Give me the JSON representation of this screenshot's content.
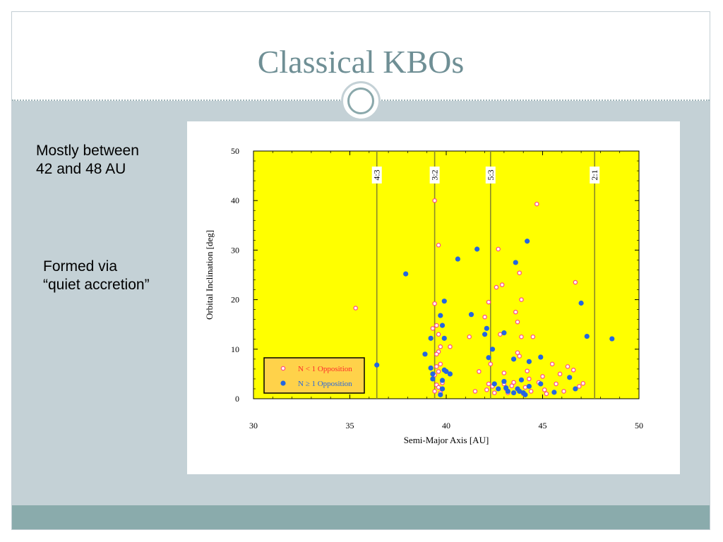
{
  "slide": {
    "title": "Classical KBOs",
    "bullets": [
      "Mostly between\n42 and 48 AU",
      "Formed via\n“quiet accretion”"
    ]
  },
  "colors": {
    "title": "#6f8f95",
    "background_panel": "#c4d1d6",
    "footer": "#8aabac",
    "plot_background": "#ffff00",
    "resonance_line": "#8a8a2a",
    "legend_fill": "#ffd24a",
    "open_marker": "#ff4d88",
    "filled_marker": "#2466e0"
  },
  "chart_data": {
    "type": "scatter",
    "xlabel": "Semi-Major Axis [AU]",
    "ylabel": "Orbital Inclination [deg]",
    "xlim": [
      30,
      50
    ],
    "ylim": [
      0,
      50
    ],
    "x_ticks": [
      30,
      35,
      40,
      45,
      50
    ],
    "y_ticks": [
      0,
      10,
      20,
      30,
      40,
      50
    ],
    "grid": false,
    "legend_position": "bottom-left",
    "resonances": [
      {
        "label": "4:3",
        "x": 36.4
      },
      {
        "label": "3:2",
        "x": 39.4
      },
      {
        "label": "5:3",
        "x": 42.3
      },
      {
        "label": "2:1",
        "x": 47.7
      }
    ],
    "series": [
      {
        "name": "N < 1 Opposition",
        "marker": "open",
        "points": [
          [
            35.3,
            18.3
          ],
          [
            39.4,
            40
          ],
          [
            39.6,
            31
          ],
          [
            39.4,
            19.2
          ],
          [
            39.5,
            14.8
          ],
          [
            39.3,
            14.2
          ],
          [
            39.6,
            13
          ],
          [
            39.7,
            10.5
          ],
          [
            39.6,
            9.5
          ],
          [
            39.5,
            9
          ],
          [
            39.7,
            7
          ],
          [
            39.5,
            6.5
          ],
          [
            39.6,
            5.5
          ],
          [
            39.4,
            4.8
          ],
          [
            39.8,
            3.2
          ],
          [
            39.5,
            2.8
          ],
          [
            39.6,
            2.3
          ],
          [
            39.4,
            1.5
          ],
          [
            39.7,
            1.2
          ],
          [
            40.2,
            10.5
          ],
          [
            41.2,
            12.5
          ],
          [
            41.5,
            1.5
          ],
          [
            41.7,
            5.5
          ],
          [
            42,
            16.5
          ],
          [
            42.2,
            19.5
          ],
          [
            42.3,
            7
          ],
          [
            42.2,
            3
          ],
          [
            42.1,
            1.8
          ],
          [
            42.4,
            2.5
          ],
          [
            42.5,
            1.2
          ],
          [
            42.6,
            22.5
          ],
          [
            42.7,
            30.2
          ],
          [
            42.9,
            23
          ],
          [
            42.8,
            13
          ],
          [
            43,
            5.2
          ],
          [
            43,
            3
          ],
          [
            43.1,
            2
          ],
          [
            43.2,
            1.2
          ],
          [
            43.4,
            2.6
          ],
          [
            43.5,
            3.3
          ],
          [
            43.6,
            17.5
          ],
          [
            43.7,
            15.5
          ],
          [
            43.7,
            9.3
          ],
          [
            43.8,
            8.6
          ],
          [
            43.8,
            25.4
          ],
          [
            43.9,
            20
          ],
          [
            43.9,
            12.5
          ],
          [
            44,
            1
          ],
          [
            44.1,
            2.3
          ],
          [
            44.2,
            5.6
          ],
          [
            44.3,
            4
          ],
          [
            44.4,
            1.5
          ],
          [
            44.5,
            12.5
          ],
          [
            44.7,
            39.3
          ],
          [
            44.8,
            3.3
          ],
          [
            45,
            4.5
          ],
          [
            45.1,
            1.8
          ],
          [
            45.2,
            1
          ],
          [
            45.5,
            7
          ],
          [
            45.7,
            3
          ],
          [
            45.9,
            5
          ],
          [
            46.1,
            1.5
          ],
          [
            46.3,
            6.5
          ],
          [
            46.6,
            5.8
          ],
          [
            46.7,
            23.5
          ],
          [
            46.9,
            2.5
          ],
          [
            47.1,
            3.1
          ]
        ]
      },
      {
        "name": "N ≥ 1 Opposition",
        "marker": "filled",
        "points": [
          [
            36.4,
            6.8
          ],
          [
            37.9,
            25.2
          ],
          [
            38.9,
            9
          ],
          [
            39.2,
            12.2
          ],
          [
            39.2,
            6.2
          ],
          [
            39.3,
            5
          ],
          [
            39.3,
            4
          ],
          [
            39.7,
            16.8
          ],
          [
            39.8,
            14.8
          ],
          [
            39.9,
            19.7
          ],
          [
            39.9,
            12.2
          ],
          [
            39.9,
            5.8
          ],
          [
            39.8,
            3.7
          ],
          [
            39.8,
            2
          ],
          [
            39.7,
            0.8
          ],
          [
            40,
            5.5
          ],
          [
            40.2,
            5
          ],
          [
            40.6,
            28.2
          ],
          [
            41.3,
            17
          ],
          [
            41.6,
            30.2
          ],
          [
            42,
            13
          ],
          [
            42.1,
            14.2
          ],
          [
            42.2,
            8.3
          ],
          [
            42.4,
            10
          ],
          [
            42.5,
            3
          ],
          [
            42.7,
            2
          ],
          [
            43,
            13.3
          ],
          [
            43,
            3.5
          ],
          [
            43.1,
            2.2
          ],
          [
            43.2,
            1.5
          ],
          [
            43.5,
            8
          ],
          [
            43.5,
            1.2
          ],
          [
            43.6,
            27.5
          ],
          [
            43.7,
            2
          ],
          [
            43.8,
            1.5
          ],
          [
            43.9,
            3.8
          ],
          [
            44,
            1.2
          ],
          [
            44.1,
            0.8
          ],
          [
            44.2,
            31.8
          ],
          [
            44.3,
            7.5
          ],
          [
            44.3,
            2.5
          ],
          [
            44.9,
            8.4
          ],
          [
            44.9,
            3
          ],
          [
            45.6,
            1.3
          ],
          [
            46.4,
            4.3
          ],
          [
            46.7,
            2
          ],
          [
            47,
            19.3
          ],
          [
            47.3,
            12.6
          ],
          [
            48.6,
            12.1
          ]
        ]
      }
    ]
  }
}
